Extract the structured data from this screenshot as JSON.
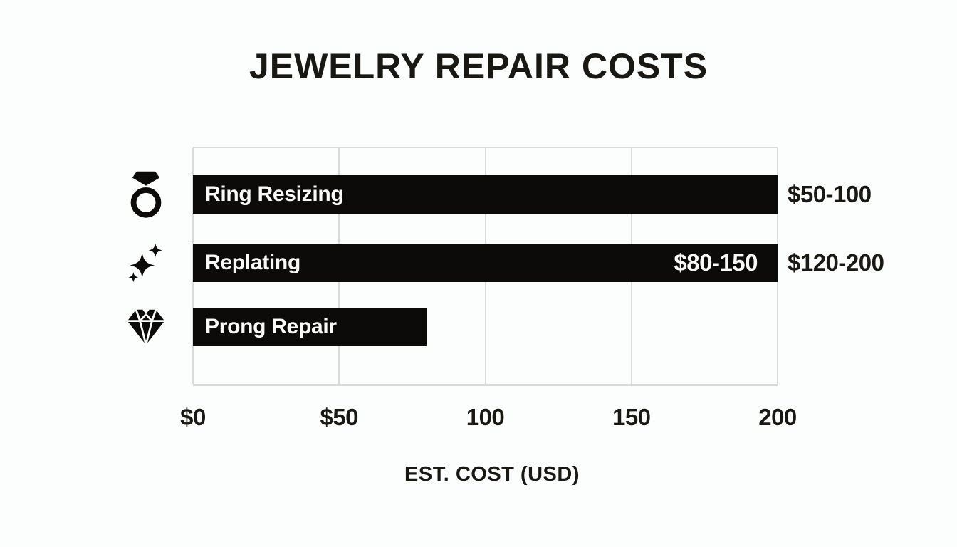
{
  "chart_data": {
    "type": "bar",
    "orientation": "horizontal",
    "title": "JEWELRY REPAIR COSTS",
    "xlabel": "EST. COST (USD)",
    "xlim": [
      0,
      200
    ],
    "x_ticks": [
      "$0",
      "$50",
      "100",
      "150",
      "200"
    ],
    "grid": true,
    "legend": "none",
    "bars": [
      {
        "category": "Ring Resizing",
        "icon": "ring-icon",
        "bar_length_value": 200,
        "inner_label": "",
        "outer_label": "$50-100"
      },
      {
        "category": "Replating",
        "icon": "sparkles-icon",
        "bar_length_value": 200,
        "inner_label": "$80-150",
        "outer_label": "$120-200"
      },
      {
        "category": "Prong Repair",
        "icon": "diamond-icon",
        "bar_length_value": 80,
        "inner_label": "",
        "outer_label": ""
      }
    ],
    "colors": {
      "bar": "#0d0b09",
      "bar_text": "#faf9f6",
      "text": "#1a1813",
      "grid": "#d9dadb",
      "background": "#fcfdfd"
    }
  }
}
